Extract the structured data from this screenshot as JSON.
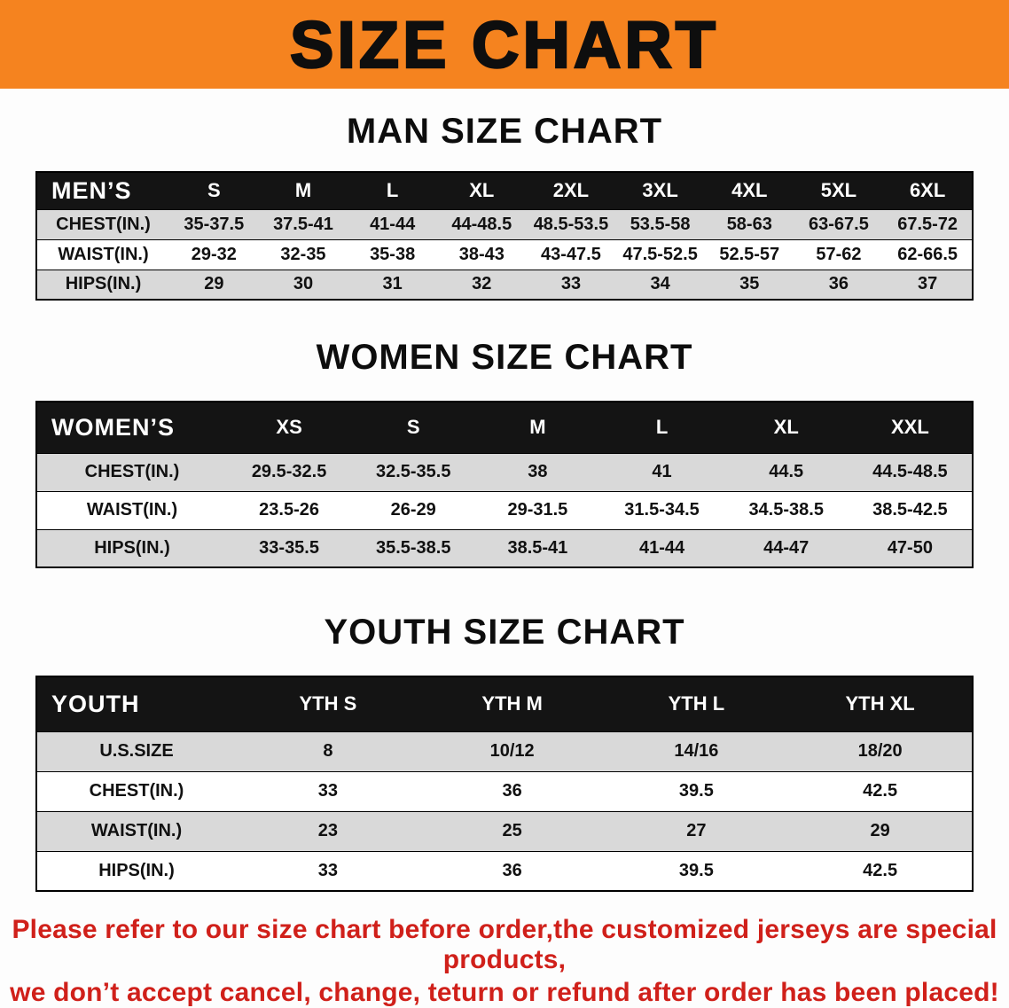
{
  "banner": {
    "title": "SIZE CHART"
  },
  "colors": {
    "banner_bg": "#f5831f",
    "table_header_bg": "#141414",
    "row_shade": "#d9d9d9",
    "footer_text": "#d0201a"
  },
  "tables": [
    {
      "id": "men",
      "heading": "MAN SIZE CHART",
      "header": [
        "MEN’S",
        "S",
        "M",
        "L",
        "XL",
        "2XL",
        "3XL",
        "4XL",
        "5XL",
        "6XL"
      ],
      "rows": [
        {
          "label": "CHEST(IN.)",
          "shade": true,
          "values": [
            "35-37.5",
            "37.5-41",
            "41-44",
            "44-48.5",
            "48.5-53.5",
            "53.5-58",
            "58-63",
            "63-67.5",
            "67.5-72"
          ]
        },
        {
          "label": "WAIST(IN.)",
          "shade": false,
          "values": [
            "29-32",
            "32-35",
            "35-38",
            "38-43",
            "43-47.5",
            "47.5-52.5",
            "52.5-57",
            "57-62",
            "62-66.5"
          ]
        },
        {
          "label": "HIPS(IN.)",
          "shade": true,
          "values": [
            "29",
            "30",
            "31",
            "32",
            "33",
            "34",
            "35",
            "36",
            "37"
          ]
        }
      ]
    },
    {
      "id": "women",
      "heading": "WOMEN SIZE CHART",
      "header": [
        "WOMEN’S",
        "XS",
        "S",
        "M",
        "L",
        "XL",
        "XXL"
      ],
      "rows": [
        {
          "label": "CHEST(IN.)",
          "shade": true,
          "values": [
            "29.5-32.5",
            "32.5-35.5",
            "38",
            "41",
            "44.5",
            "44.5-48.5"
          ]
        },
        {
          "label": "WAIST(IN.)",
          "shade": false,
          "values": [
            "23.5-26",
            "26-29",
            "29-31.5",
            "31.5-34.5",
            "34.5-38.5",
            "38.5-42.5"
          ]
        },
        {
          "label": "HIPS(IN.)",
          "shade": true,
          "values": [
            "33-35.5",
            "35.5-38.5",
            "38.5-41",
            "41-44",
            "44-47",
            "47-50"
          ]
        }
      ]
    },
    {
      "id": "youth",
      "heading": "YOUTH SIZE CHART",
      "header": [
        "YOUTH",
        "YTH S",
        "YTH M",
        "YTH L",
        "YTH XL"
      ],
      "rows": [
        {
          "label": "U.S.SIZE",
          "shade": true,
          "values": [
            "8",
            "10/12",
            "14/16",
            "18/20"
          ]
        },
        {
          "label": "CHEST(IN.)",
          "shade": false,
          "values": [
            "33",
            "36",
            "39.5",
            "42.5"
          ]
        },
        {
          "label": "WAIST(IN.)",
          "shade": true,
          "values": [
            "23",
            "25",
            "27",
            "29"
          ]
        },
        {
          "label": "HIPS(IN.)",
          "shade": false,
          "values": [
            "33",
            "36",
            "39.5",
            "42.5"
          ]
        }
      ]
    }
  ],
  "footer": {
    "line1": "Please refer to our size chart before order,the customized jerseys are special products,",
    "line2": "we don’t accept cancel, change, teturn or refund after order has been placed!"
  }
}
